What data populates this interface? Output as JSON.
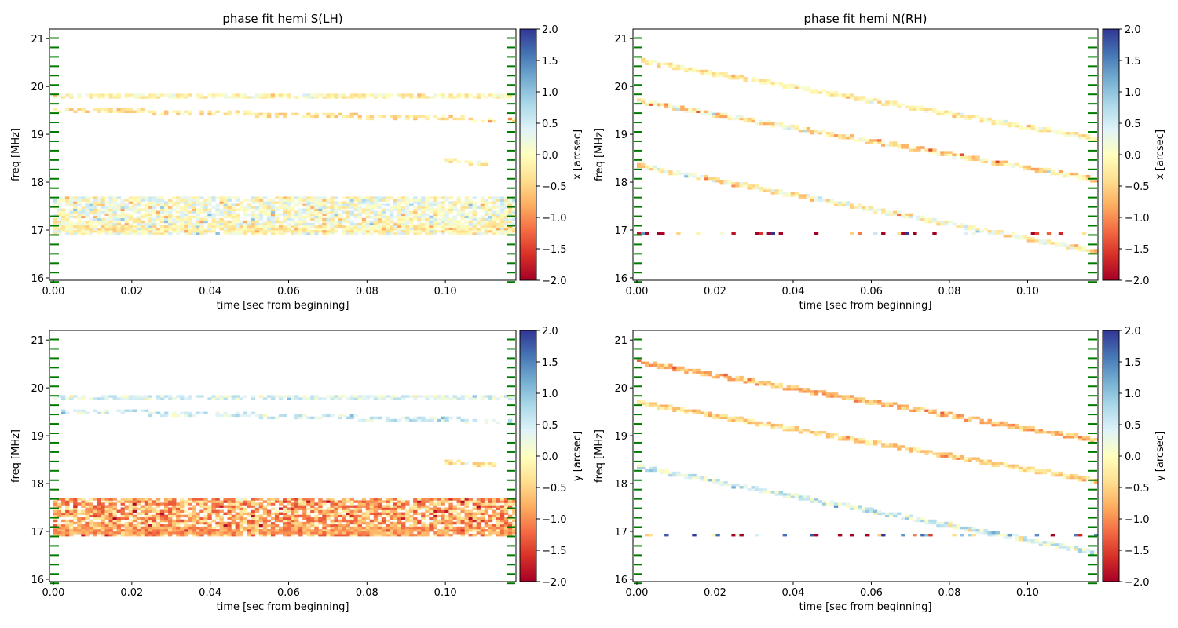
{
  "chart_data": [
    {
      "type": "heatmap",
      "title": "phase fit  hemi S(LH)",
      "xlabel": "time [sec from beginning]",
      "ylabel": "freq [MHz]",
      "xlim": [
        -0.001,
        0.118
      ],
      "ylim": [
        15.95,
        21.2
      ],
      "xticks": [
        "0.00",
        "0.02",
        "0.04",
        "0.06",
        "0.08",
        "0.10"
      ],
      "yticks": [
        "16",
        "17",
        "18",
        "19",
        "20",
        "21"
      ],
      "colorbar": {
        "label": "x [arcsec]",
        "range": [
          -2.0,
          2.0
        ],
        "ticks": [
          "2.0",
          "1.5",
          "1.0",
          "0.5",
          "0.0",
          "−0.5",
          "−1.0",
          "−1.5",
          "−2.0"
        ],
        "colormap": "RdYlBu"
      },
      "marker_color": "#007a00",
      "bands": [
        {
          "x0": 0.0,
          "x1": 0.118,
          "f0": 19.8,
          "f1": 19.8,
          "width": 0.06,
          "value": -0.1,
          "density": 0.75
        },
        {
          "x0": 0.0,
          "x1": 0.118,
          "f0": 19.52,
          "f1": 19.3,
          "width": 0.05,
          "value": -0.35,
          "density": 0.55
        },
        {
          "x0": 0.0,
          "x1": 0.118,
          "f0": 17.3,
          "f1": 17.3,
          "width": 0.75,
          "value": 0.1,
          "density": 0.8,
          "noise": 0.5
        },
        {
          "x0": 0.0,
          "x1": 0.118,
          "f0": 17.02,
          "f1": 17.02,
          "width": 0.06,
          "value": -0.2,
          "density": 0.8
        },
        {
          "x0": 0.1,
          "x1": 0.113,
          "f0": 18.45,
          "f1": 18.38,
          "width": 0.04,
          "value": -0.3,
          "density": 0.8
        }
      ]
    },
    {
      "type": "heatmap",
      "title": "phase fit  hemi N(RH)",
      "xlabel": "time [sec from beginning]",
      "ylabel": "freq [MHz]",
      "xlim": [
        -0.001,
        0.118
      ],
      "ylim": [
        15.95,
        21.2
      ],
      "xticks": [
        "0.00",
        "0.02",
        "0.04",
        "0.06",
        "0.08",
        "0.10"
      ],
      "yticks": [
        "16",
        "17",
        "18",
        "19",
        "20",
        "21"
      ],
      "colorbar": {
        "label": "x [arcsec]",
        "range": [
          -2.0,
          2.0
        ],
        "ticks": [
          "2.0",
          "1.5",
          "1.0",
          "0.5",
          "0.0",
          "−0.5",
          "−1.0",
          "−1.5",
          "−2.0"
        ],
        "colormap": "RdYlBu"
      },
      "marker_color": "#007a00",
      "bands": [
        {
          "x0": 0.0,
          "x1": 0.118,
          "f0": 20.55,
          "f1": 18.9,
          "width": 0.05,
          "value": -0.15,
          "density": 0.9
        },
        {
          "x0": 0.0,
          "x1": 0.118,
          "f0": 19.7,
          "f1": 18.05,
          "width": 0.05,
          "value": -0.3,
          "density": 0.9,
          "noise": 0.6
        },
        {
          "x0": 0.0,
          "x1": 0.118,
          "f0": 18.35,
          "f1": 16.55,
          "width": 0.05,
          "value": -0.1,
          "density": 0.9,
          "noise": 0.6
        },
        {
          "x0": 0.0,
          "x1": 0.118,
          "f0": 16.93,
          "f1": 16.93,
          "width": 0.03,
          "value": -1.6,
          "density": 0.3,
          "noise": 2.5
        }
      ]
    },
    {
      "type": "heatmap",
      "title": "",
      "xlabel": "time [sec from beginning]",
      "ylabel": "freq [MHz]",
      "xlim": [
        -0.001,
        0.118
      ],
      "ylim": [
        15.95,
        21.2
      ],
      "xticks": [
        "0.00",
        "0.02",
        "0.04",
        "0.06",
        "0.08",
        "0.10"
      ],
      "yticks": [
        "16",
        "17",
        "18",
        "19",
        "20",
        "21"
      ],
      "colorbar": {
        "label": "y [arcsec]",
        "range": [
          -2.0,
          2.0
        ],
        "ticks": [
          "2.0",
          "1.5",
          "1.0",
          "0.5",
          "0.0",
          "−0.5",
          "−1.0",
          "−1.5",
          "−2.0"
        ],
        "colormap": "RdYlBu"
      },
      "marker_color": "#007a00",
      "bands": [
        {
          "x0": 0.0,
          "x1": 0.118,
          "f0": 19.8,
          "f1": 19.8,
          "width": 0.06,
          "value": 0.4,
          "density": 0.75
        },
        {
          "x0": 0.0,
          "x1": 0.118,
          "f0": 19.52,
          "f1": 19.3,
          "width": 0.05,
          "value": 0.5,
          "density": 0.55
        },
        {
          "x0": 0.0,
          "x1": 0.118,
          "f0": 17.3,
          "f1": 17.3,
          "width": 0.75,
          "value": -0.8,
          "density": 0.8,
          "noise": 0.6
        },
        {
          "x0": 0.0,
          "x1": 0.118,
          "f0": 17.02,
          "f1": 17.02,
          "width": 0.06,
          "value": -0.9,
          "density": 0.8
        },
        {
          "x0": 0.1,
          "x1": 0.113,
          "f0": 18.45,
          "f1": 18.38,
          "width": 0.04,
          "value": -0.3,
          "density": 0.8
        }
      ]
    },
    {
      "type": "heatmap",
      "title": "",
      "xlabel": "time [sec from beginning]",
      "ylabel": "freq [MHz]",
      "xlim": [
        -0.001,
        0.118
      ],
      "ylim": [
        15.95,
        21.2
      ],
      "xticks": [
        "0.00",
        "0.02",
        "0.04",
        "0.06",
        "0.08",
        "0.10"
      ],
      "yticks": [
        "16",
        "17",
        "18",
        "19",
        "20",
        "21"
      ],
      "colorbar": {
        "label": "y [arcsec]",
        "range": [
          -2.0,
          2.0
        ],
        "ticks": [
          "2.0",
          "1.5",
          "1.0",
          "0.5",
          "0.0",
          "−0.5",
          "−1.0",
          "−1.5",
          "−2.0"
        ],
        "colormap": "RdYlBu"
      },
      "marker_color": "#007a00",
      "bands": [
        {
          "x0": 0.0,
          "x1": 0.118,
          "f0": 20.55,
          "f1": 18.9,
          "width": 0.05,
          "value": -0.7,
          "density": 0.9
        },
        {
          "x0": 0.0,
          "x1": 0.118,
          "f0": 19.7,
          "f1": 18.05,
          "width": 0.05,
          "value": -0.45,
          "density": 0.9
        },
        {
          "x0": 0.0,
          "x1": 0.118,
          "f0": 18.35,
          "f1": 16.55,
          "width": 0.05,
          "value": 0.45,
          "density": 0.9,
          "noise": 0.5
        },
        {
          "x0": 0.0,
          "x1": 0.118,
          "f0": 16.93,
          "f1": 16.93,
          "width": 0.03,
          "value": -0.2,
          "density": 0.3,
          "noise": 2.0
        }
      ]
    }
  ]
}
